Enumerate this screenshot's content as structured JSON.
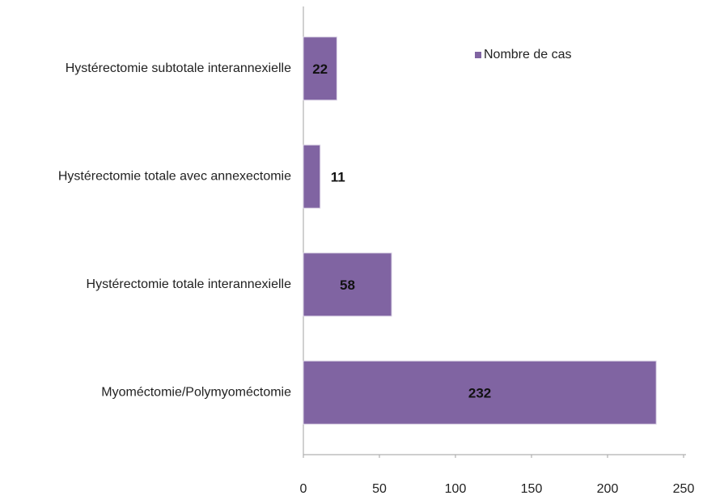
{
  "chart_data": {
    "type": "barh",
    "categories": [
      "Hystérectomie subtotale interannexielle",
      "Hystérectomie totale avec annexectomie",
      "Hystérectomie totale interannexielle",
      "Myoméctomie/Polymyoméctomie"
    ],
    "series": [
      {
        "name": "Nombre de cas",
        "color": "#8064a2",
        "values": [
          22,
          11,
          58,
          232
        ]
      }
    ],
    "xlim": [
      0,
      250
    ],
    "xticks": [
      0,
      50,
      100,
      150,
      200,
      250
    ],
    "grid": false,
    "legend": "top-right"
  }
}
